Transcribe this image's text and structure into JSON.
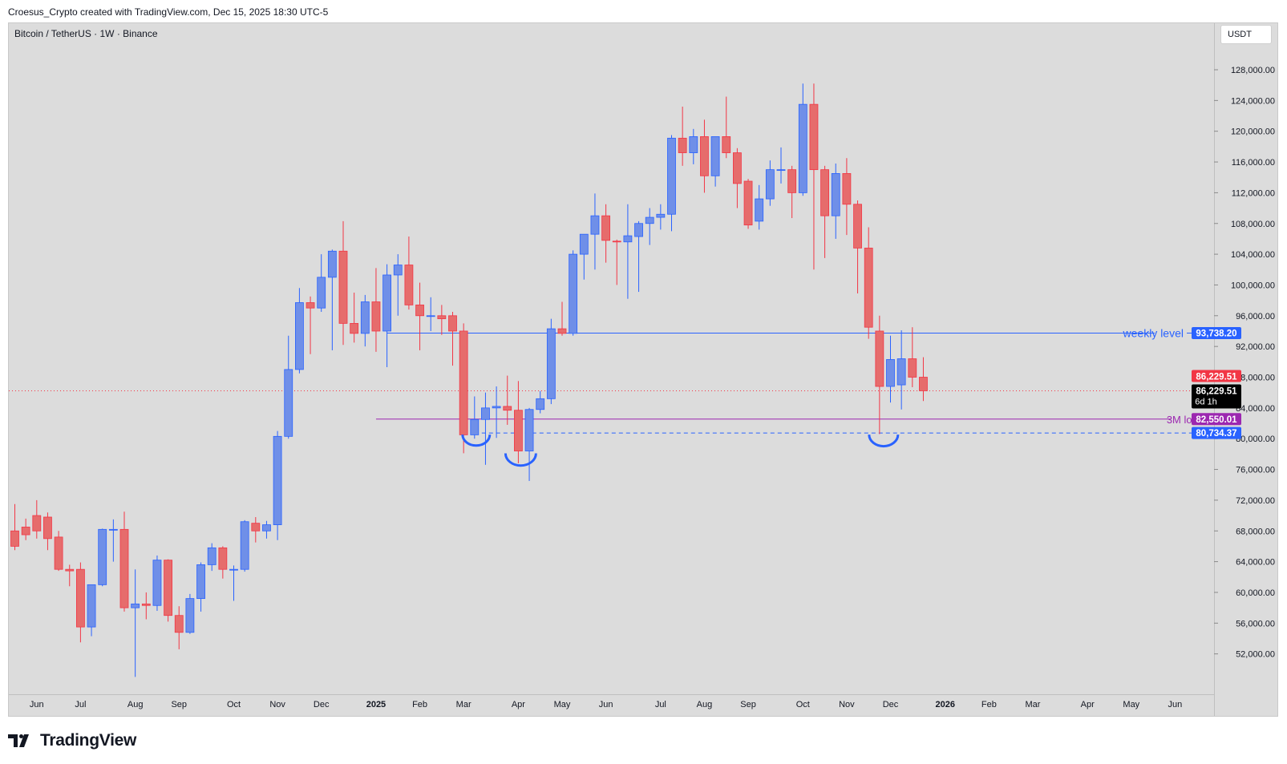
{
  "header": {
    "attribution": "Croesus_Crypto created with TradingView.com, Dec 15, 2025 18:30 UTC-5"
  },
  "symbol": {
    "label": "Bitcoin / TetherUS · 1W · Binance"
  },
  "currency_button": {
    "label": "USDT"
  },
  "footer": {
    "brand": "TradingView"
  },
  "colors": {
    "up": "#6f8fe8",
    "down": "#e66c6c",
    "up_wick": "#2962ff",
    "down_wick": "#f23645",
    "weekly_level": "#2962ff",
    "three_month_low": "#9c27b0",
    "bottom_level": "#2962ff",
    "last_price": "#f23645",
    "background": "#dcdcdc"
  },
  "chart_data": {
    "type": "candlestick",
    "timeframe": "1W",
    "ylim": [
      48000,
      132000
    ],
    "y_ticks": [
      "52,000.00",
      "56,000.00",
      "60,000.00",
      "64,000.00",
      "68,000.00",
      "72,000.00",
      "76,000.00",
      "80,000.00",
      "84,000.00",
      "88,000.00",
      "92,000.00",
      "96,000.00",
      "100,000.00",
      "104,000.00",
      "108,000.00",
      "112,000.00",
      "116,000.00",
      "120,000.00",
      "124,000.00",
      "128,000.00"
    ],
    "x_labels": [
      {
        "label": "Jun",
        "bold": false,
        "week": 2
      },
      {
        "label": "Jul",
        "bold": false,
        "week": 6
      },
      {
        "label": "Aug",
        "bold": false,
        "week": 11
      },
      {
        "label": "Sep",
        "bold": false,
        "week": 15
      },
      {
        "label": "Oct",
        "bold": false,
        "week": 20
      },
      {
        "label": "Nov",
        "bold": false,
        "week": 24
      },
      {
        "label": "Dec",
        "bold": false,
        "week": 28
      },
      {
        "label": "2025",
        "bold": true,
        "week": 33
      },
      {
        "label": "Feb",
        "bold": false,
        "week": 37
      },
      {
        "label": "Mar",
        "bold": false,
        "week": 41
      },
      {
        "label": "Apr",
        "bold": false,
        "week": 46
      },
      {
        "label": "May",
        "bold": false,
        "week": 50
      },
      {
        "label": "Jun",
        "bold": false,
        "week": 54
      },
      {
        "label": "Jul",
        "bold": false,
        "week": 59
      },
      {
        "label": "Aug",
        "bold": false,
        "week": 63
      },
      {
        "label": "Sep",
        "bold": false,
        "week": 67
      },
      {
        "label": "Oct",
        "bold": false,
        "week": 72
      },
      {
        "label": "Nov",
        "bold": false,
        "week": 76
      },
      {
        "label": "Dec",
        "bold": false,
        "week": 80
      },
      {
        "label": "2026",
        "bold": true,
        "week": 85
      },
      {
        "label": "Feb",
        "bold": false,
        "week": 89
      },
      {
        "label": "Mar",
        "bold": false,
        "week": 93
      },
      {
        "label": "Apr",
        "bold": false,
        "week": 98
      },
      {
        "label": "May",
        "bold": false,
        "week": 102
      },
      {
        "label": "Jun",
        "bold": false,
        "week": 106
      }
    ],
    "candles": [
      [
        68000,
        71500,
        65500,
        66000
      ],
      [
        68500,
        69600,
        66800,
        67500
      ],
      [
        70000,
        72000,
        67000,
        68000
      ],
      [
        69800,
        70400,
        65500,
        67000
      ],
      [
        67200,
        68000,
        62800,
        63000
      ],
      [
        63000,
        63600,
        60800,
        62800
      ],
      [
        63000,
        63900,
        53500,
        55500
      ],
      [
        55500,
        61000,
        54300,
        61000
      ],
      [
        61000,
        68300,
        60800,
        68200
      ],
      [
        68200,
        69500,
        64000,
        68200
      ],
      [
        68200,
        70500,
        57500,
        58000
      ],
      [
        58000,
        63000,
        49000,
        58500
      ],
      [
        58500,
        60000,
        56500,
        58300
      ],
      [
        58300,
        64800,
        57600,
        64200
      ],
      [
        64200,
        64300,
        56200,
        57000
      ],
      [
        57000,
        58200,
        52600,
        54800
      ],
      [
        54800,
        59800,
        54600,
        59200
      ],
      [
        59200,
        63900,
        57500,
        63600
      ],
      [
        63600,
        66400,
        62800,
        65800
      ],
      [
        65800,
        66000,
        61800,
        63000
      ],
      [
        63000,
        63500,
        58900,
        63000
      ],
      [
        63000,
        69400,
        62700,
        69200
      ],
      [
        69000,
        69800,
        66500,
        68000
      ],
      [
        68000,
        69300,
        67000,
        68800
      ],
      [
        68800,
        81000,
        66800,
        80300
      ],
      [
        80300,
        93400,
        80000,
        89000
      ],
      [
        89000,
        99600,
        88500,
        97700
      ],
      [
        97700,
        98500,
        91000,
        97000
      ],
      [
        97000,
        104000,
        96500,
        101000
      ],
      [
        101000,
        104600,
        91500,
        104400
      ],
      [
        104400,
        108300,
        92200,
        95000
      ],
      [
        95000,
        99000,
        92500,
        93700
      ],
      [
        93700,
        98700,
        92000,
        97800
      ],
      [
        97800,
        102200,
        91300,
        94000
      ],
      [
        94000,
        102700,
        89300,
        101300
      ],
      [
        101300,
        104000,
        96000,
        102600
      ],
      [
        102600,
        106300,
        96800,
        97400
      ],
      [
        97400,
        100300,
        91500,
        96000
      ],
      [
        96000,
        98400,
        94000,
        96000
      ],
      [
        96000,
        97400,
        93500,
        95600
      ],
      [
        96000,
        96500,
        89500,
        94000
      ],
      [
        94000,
        95000,
        78100,
        80500
      ],
      [
        80500,
        85500,
        80000,
        82500
      ],
      [
        82500,
        86000,
        76600,
        84000
      ],
      [
        84000,
        86800,
        80100,
        84200
      ],
      [
        84200,
        88200,
        81800,
        83700
      ],
      [
        83700,
        87500,
        76800,
        78400
      ],
      [
        78400,
        84000,
        74500,
        83800
      ],
      [
        83800,
        86200,
        83300,
        85200
      ],
      [
        85200,
        95600,
        84500,
        94300
      ],
      [
        94300,
        97800,
        93400,
        93700
      ],
      [
        93700,
        104500,
        93400,
        104000
      ],
      [
        104000,
        106000,
        100700,
        106600
      ],
      [
        106600,
        111900,
        102000,
        109000
      ],
      [
        109000,
        110500,
        102900,
        105800
      ],
      [
        105700,
        105900,
        100000,
        105600
      ],
      [
        105600,
        110500,
        98200,
        106400
      ],
      [
        106300,
        108300,
        99100,
        108000
      ],
      [
        108000,
        110000,
        105200,
        108800
      ],
      [
        108800,
        110500,
        107200,
        109200
      ],
      [
        109200,
        119500,
        107000,
        119100
      ],
      [
        119100,
        123200,
        115500,
        117200
      ],
      [
        117200,
        120300,
        115700,
        119300
      ],
      [
        119300,
        121500,
        112000,
        114200
      ],
      [
        114200,
        119000,
        112800,
        119300
      ],
      [
        119300,
        124500,
        116500,
        117200
      ],
      [
        117200,
        117800,
        110000,
        113200
      ],
      [
        113500,
        113800,
        107300,
        107800
      ],
      [
        108300,
        113000,
        107200,
        111200
      ],
      [
        111200,
        116200,
        110300,
        115000
      ],
      [
        115000,
        117900,
        113200,
        115000
      ],
      [
        115000,
        115500,
        108700,
        112000
      ],
      [
        112000,
        126200,
        111600,
        123500
      ],
      [
        123500,
        126200,
        102000,
        115000
      ],
      [
        115000,
        115500,
        103500,
        109000
      ],
      [
        109000,
        115800,
        106000,
        114500
      ],
      [
        114500,
        116500,
        106500,
        110500
      ],
      [
        110500,
        111000,
        98900,
        104800
      ],
      [
        104800,
        107500,
        93000,
        94500
      ],
      [
        94000,
        96000,
        80600,
        86800
      ],
      [
        86800,
        93400,
        84700,
        90300
      ],
      [
        87000,
        94100,
        83800,
        90400
      ],
      [
        90400,
        94500,
        86700,
        88000
      ],
      [
        88000,
        90600,
        84900,
        86230
      ]
    ],
    "levels": [
      {
        "name": "weekly level",
        "value": 93738.2,
        "label": "93,738.20",
        "style": "solid",
        "color": "#2962ff"
      },
      {
        "name": "3M low",
        "value": 82550.01,
        "label": "82,550.01",
        "style": "solid",
        "color": "#9c27b0"
      },
      {
        "name": "",
        "value": 80734.37,
        "label": "80,734.37",
        "style": "dashed",
        "color": "#2962ff"
      },
      {
        "name": "",
        "value": 86229.51,
        "label": "86,229.51",
        "style": "dotted",
        "color": "#f23645"
      }
    ],
    "last_price": {
      "value": 86229.51,
      "label": "86,229.51",
      "countdown": "6d 1h"
    },
    "annotations": [
      "weekly level",
      "3M low"
    ]
  }
}
